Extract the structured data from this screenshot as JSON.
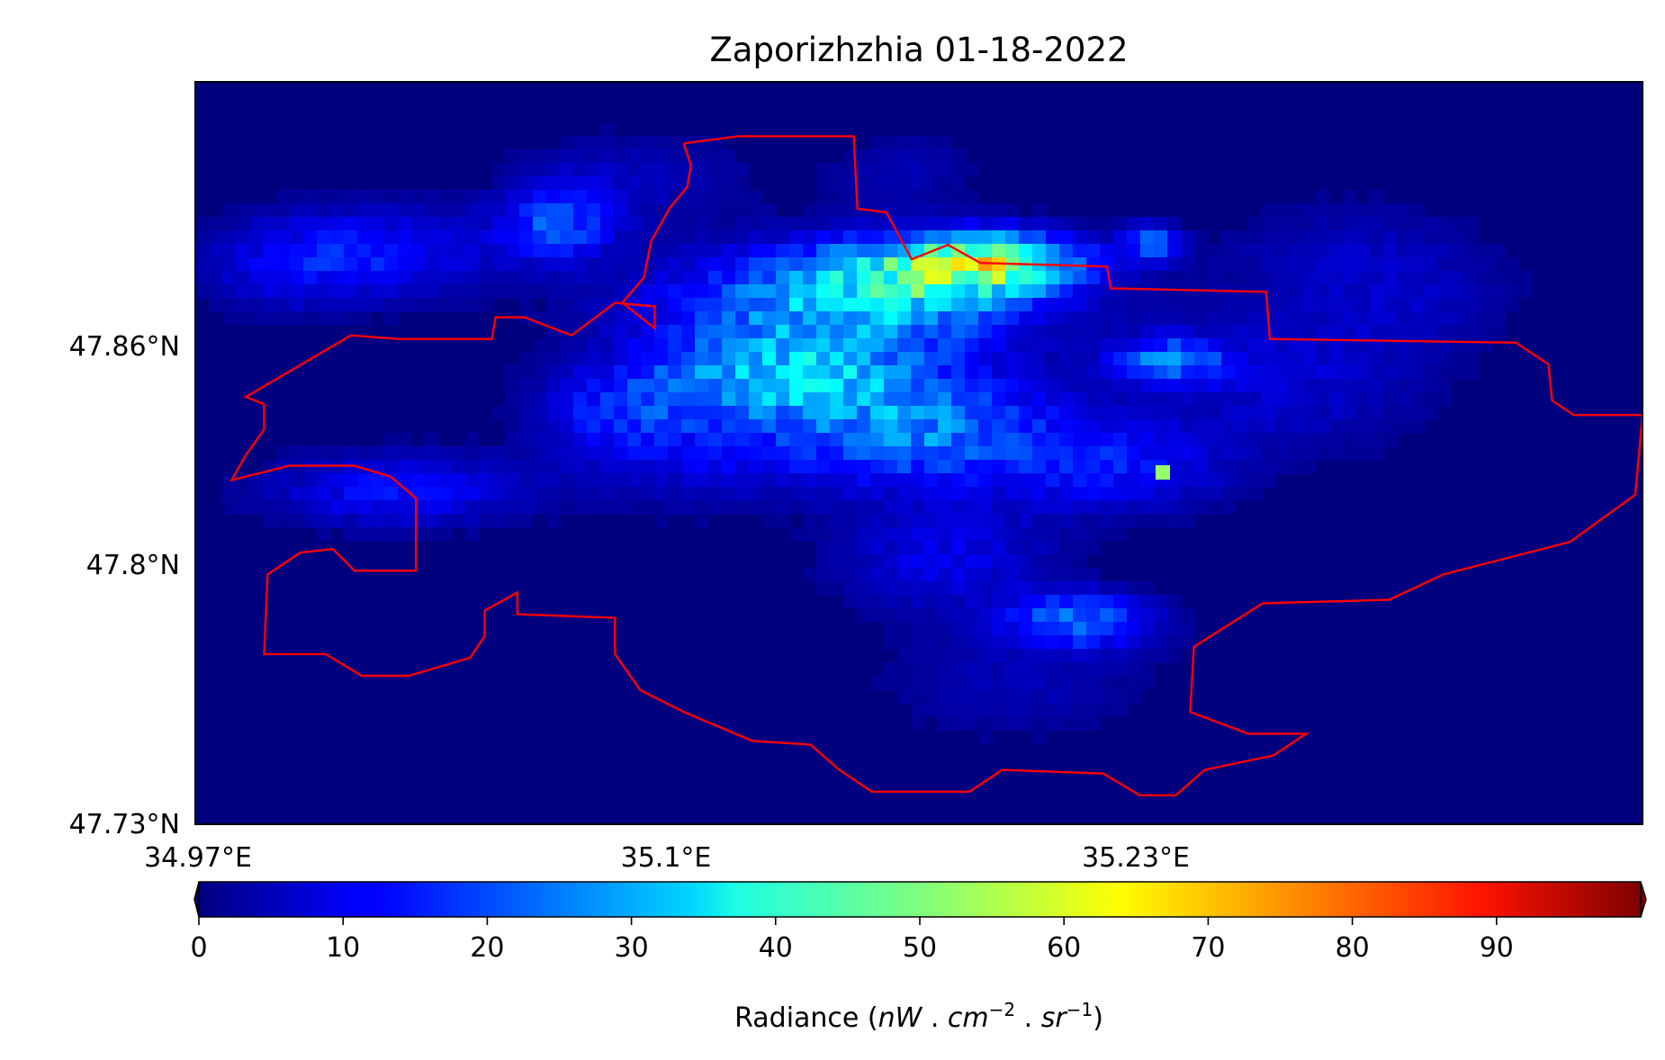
{
  "title": "Zaporizhzhia 01-18-2022",
  "map": {
    "lat_ticks": [
      {
        "label": "47.86°N",
        "value": 47.86
      },
      {
        "label": "47.8°N",
        "value": 47.8
      },
      {
        "label": "47.73°N",
        "value": 47.73
      }
    ],
    "lon_ticks": [
      {
        "label": "34.97°E",
        "value": 34.97
      },
      {
        "label": "35.1°E",
        "value": 35.1
      },
      {
        "label": "35.23°E",
        "value": 35.23
      }
    ],
    "lon_range": [
      34.97,
      35.37
    ],
    "lat_range": [
      47.73,
      47.935
    ],
    "background_color": "#00007f",
    "boundary_color": "#ff0000",
    "boundary_lonlat": [
      [
        35.105,
        47.918
      ],
      [
        35.12,
        47.92
      ],
      [
        35.152,
        47.92
      ],
      [
        35.153,
        47.9
      ],
      [
        35.161,
        47.899
      ],
      [
        35.168,
        47.886
      ],
      [
        35.178,
        47.89
      ],
      [
        35.187,
        47.885
      ],
      [
        35.222,
        47.884
      ],
      [
        35.223,
        47.878
      ],
      [
        35.266,
        47.877
      ],
      [
        35.267,
        47.864
      ],
      [
        35.335,
        47.863
      ],
      [
        35.344,
        47.857
      ],
      [
        35.345,
        47.847
      ],
      [
        35.351,
        47.843
      ],
      [
        35.37,
        47.843
      ],
      [
        35.368,
        47.821
      ],
      [
        35.35,
        47.808
      ],
      [
        35.315,
        47.799
      ],
      [
        35.3,
        47.792
      ],
      [
        35.265,
        47.791
      ],
      [
        35.246,
        47.779
      ],
      [
        35.245,
        47.761
      ],
      [
        35.261,
        47.755
      ],
      [
        35.277,
        47.755
      ],
      [
        35.268,
        47.749
      ],
      [
        35.249,
        47.745
      ],
      [
        35.241,
        47.738
      ],
      [
        35.231,
        47.738
      ],
      [
        35.221,
        47.744
      ],
      [
        35.193,
        47.745
      ],
      [
        35.184,
        47.739
      ],
      [
        35.157,
        47.739
      ],
      [
        35.148,
        47.745
      ],
      [
        35.14,
        47.752
      ],
      [
        35.124,
        47.753
      ],
      [
        35.105,
        47.761
      ],
      [
        35.093,
        47.767
      ],
      [
        35.086,
        47.777
      ],
      [
        35.086,
        47.787
      ],
      [
        35.059,
        47.788
      ],
      [
        35.059,
        47.794
      ],
      [
        35.05,
        47.789
      ],
      [
        35.05,
        47.782
      ],
      [
        35.046,
        47.776
      ],
      [
        35.029,
        47.771
      ],
      [
        35.016,
        47.771
      ],
      [
        35.006,
        47.777
      ],
      [
        34.989,
        47.777
      ],
      [
        34.99,
        47.799
      ],
      [
        34.999,
        47.805
      ],
      [
        35.008,
        47.806
      ],
      [
        35.014,
        47.8
      ],
      [
        35.031,
        47.8
      ],
      [
        35.031,
        47.82
      ],
      [
        35.024,
        47.826
      ],
      [
        35.014,
        47.829
      ],
      [
        34.996,
        47.829
      ],
      [
        34.98,
        47.825
      ],
      [
        34.984,
        47.832
      ],
      [
        34.989,
        47.839
      ],
      [
        34.989,
        47.846
      ],
      [
        34.984,
        47.848
      ],
      [
        35.013,
        47.865
      ],
      [
        35.026,
        47.864
      ],
      [
        35.052,
        47.864
      ],
      [
        35.053,
        47.87
      ],
      [
        35.061,
        47.87
      ],
      [
        35.074,
        47.865
      ],
      [
        35.086,
        47.874
      ],
      [
        35.097,
        47.873
      ],
      [
        35.097,
        47.867
      ],
      [
        35.088,
        47.874
      ],
      [
        35.094,
        47.881
      ],
      [
        35.096,
        47.891
      ],
      [
        35.101,
        47.9
      ],
      [
        35.106,
        47.906
      ],
      [
        35.107,
        47.912
      ],
      [
        35.105,
        47.918
      ]
    ]
  },
  "colorbar": {
    "label_main": "Radiance (",
    "label_unit_1": "nW",
    "label_sep_1": " . ",
    "label_unit_2": "cm",
    "label_exp_2": "−2",
    "label_sep_2": " . ",
    "label_unit_3": "sr",
    "label_exp_3": "−1",
    "label_end": ")",
    "min": 0,
    "max": 100,
    "ticks": [
      0,
      10,
      20,
      30,
      40,
      50,
      60,
      70,
      80,
      90
    ],
    "colormap": "jet"
  }
}
